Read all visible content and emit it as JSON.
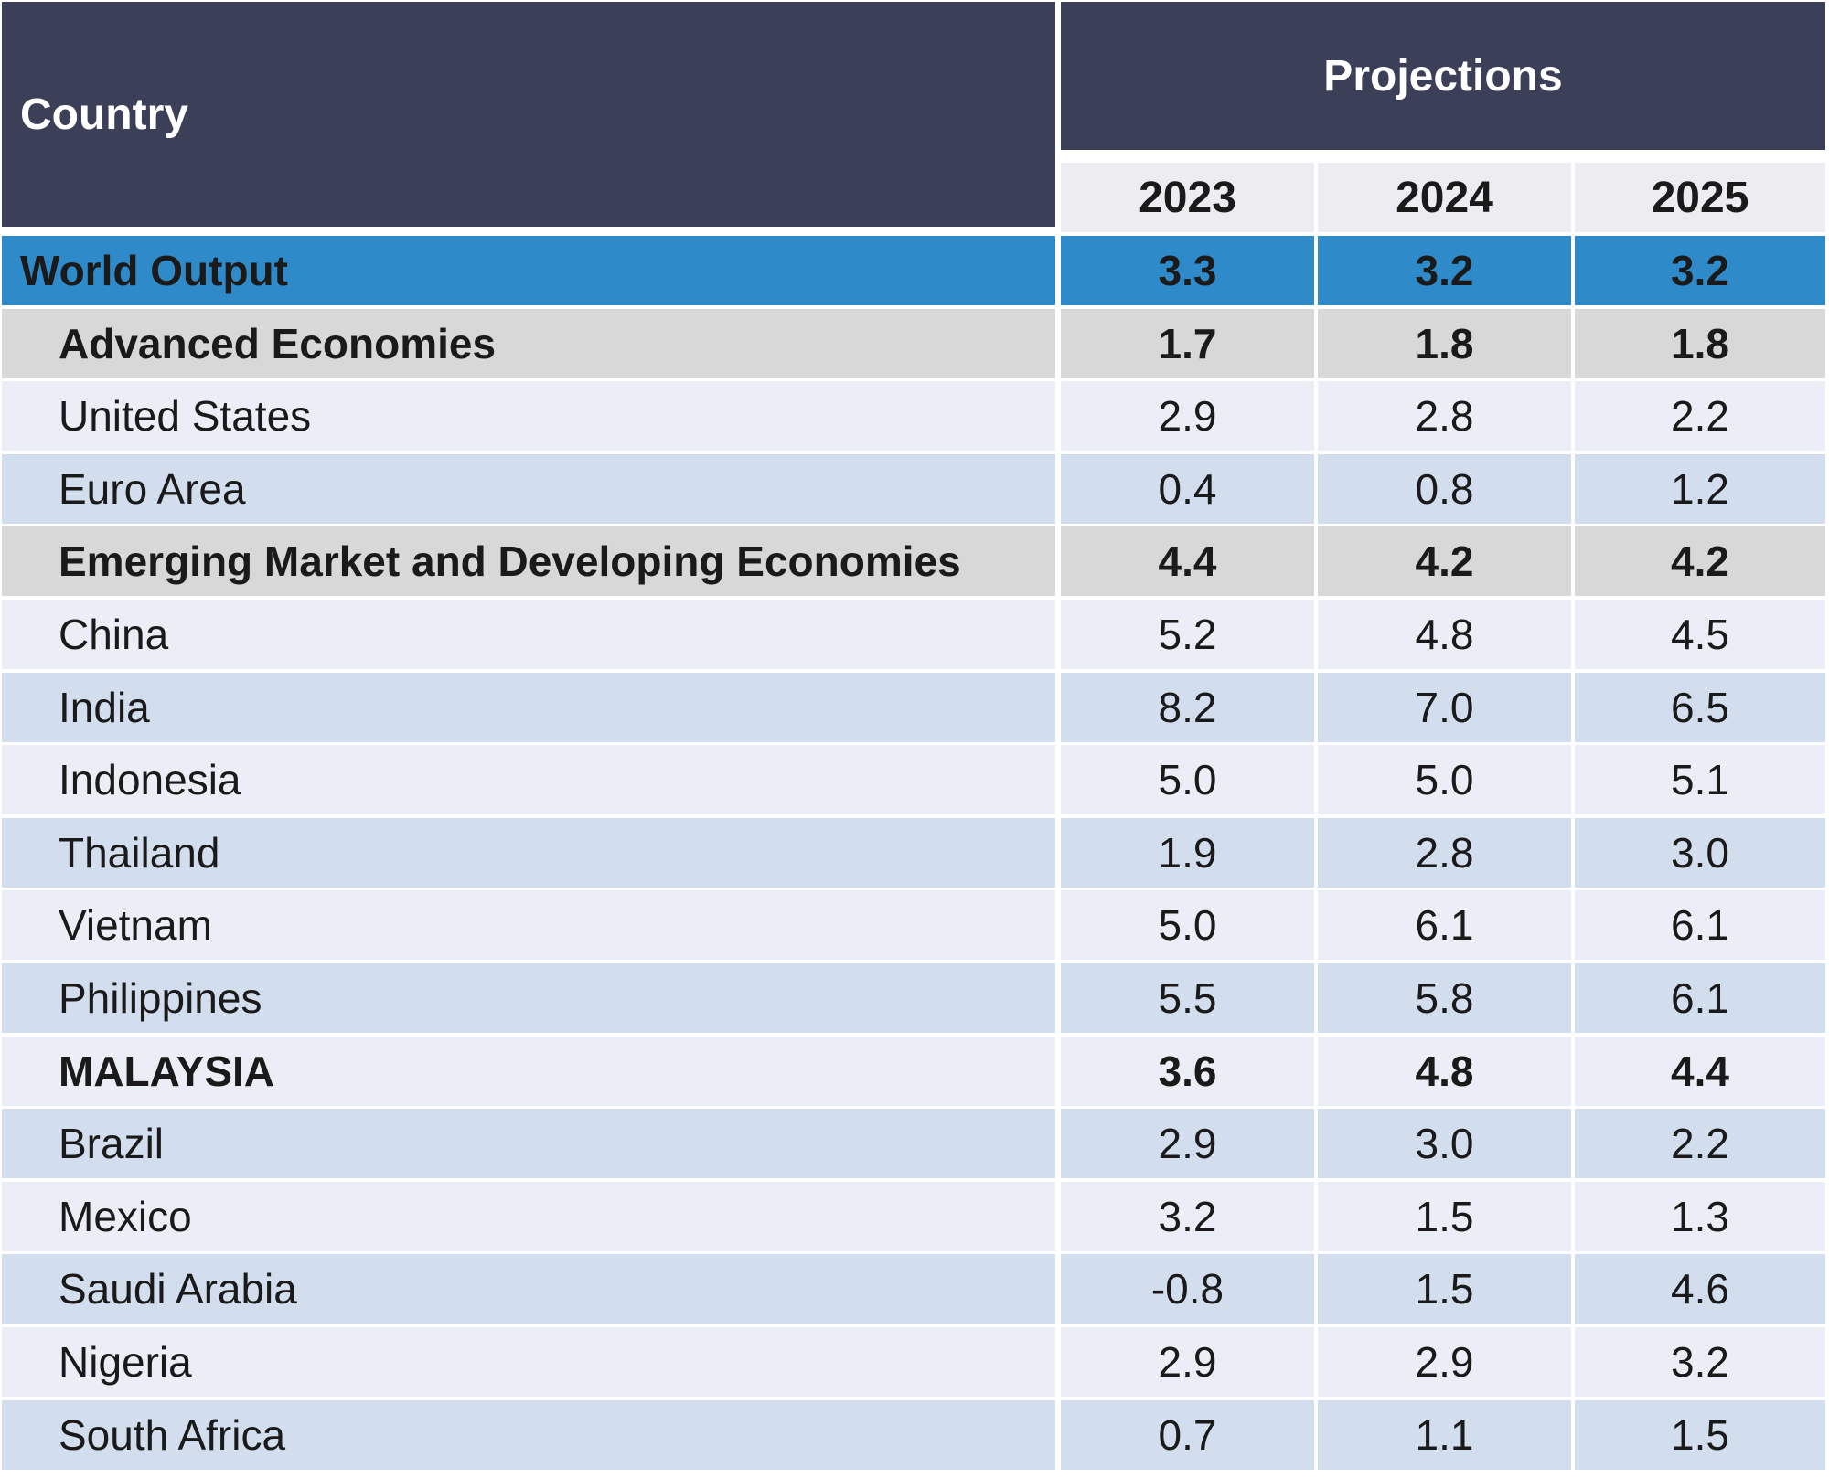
{
  "header": {
    "country_label": "Country",
    "projections_label": "Projections",
    "years": [
      "2023",
      "2024",
      "2025"
    ]
  },
  "colors": {
    "header_bg": "#3b3f58",
    "world_row_bg": "#2e8ac8",
    "group_row_bg": "#d8d8d8",
    "row_light": "#ebeef6",
    "row_dark": "#d2ddee"
  },
  "rows": [
    {
      "name": "World Output",
      "values": [
        "3.3",
        "3.2",
        "3.2"
      ],
      "style": "world"
    },
    {
      "name": "Advanced Economies",
      "values": [
        "1.7",
        "1.8",
        "1.8"
      ],
      "style": "group"
    },
    {
      "name": "United States",
      "values": [
        "2.9",
        "2.8",
        "2.2"
      ],
      "style": "light"
    },
    {
      "name": "Euro Area",
      "values": [
        "0.4",
        "0.8",
        "1.2"
      ],
      "style": "dark"
    },
    {
      "name": "Emerging Market and Developing Economies",
      "values": [
        "4.4",
        "4.2",
        "4.2"
      ],
      "style": "group"
    },
    {
      "name": "China",
      "values": [
        "5.2",
        "4.8",
        "4.5"
      ],
      "style": "light"
    },
    {
      "name": "India",
      "values": [
        "8.2",
        "7.0",
        "6.5"
      ],
      "style": "dark"
    },
    {
      "name": "Indonesia",
      "values": [
        "5.0",
        "5.0",
        "5.1"
      ],
      "style": "light"
    },
    {
      "name": "Thailand",
      "values": [
        "1.9",
        "2.8",
        "3.0"
      ],
      "style": "dark"
    },
    {
      "name": "Vietnam",
      "values": [
        "5.0",
        "6.1",
        "6.1"
      ],
      "style": "light"
    },
    {
      "name": "Philippines",
      "values": [
        "5.5",
        "5.8",
        "6.1"
      ],
      "style": "dark"
    },
    {
      "name": "MALAYSIA",
      "values": [
        "3.6",
        "4.8",
        "4.4"
      ],
      "style": "light bold"
    },
    {
      "name": "Brazil",
      "values": [
        "2.9",
        "3.0",
        "2.2"
      ],
      "style": "dark"
    },
    {
      "name": "Mexico",
      "values": [
        "3.2",
        "1.5",
        "1.3"
      ],
      "style": "light"
    },
    {
      "name": "Saudi Arabia",
      "values": [
        "-0.8",
        "1.5",
        "4.6"
      ],
      "style": "dark"
    },
    {
      "name": "Nigeria",
      "values": [
        "2.9",
        "2.9",
        "3.2"
      ],
      "style": "light"
    },
    {
      "name": "South Africa",
      "values": [
        "0.7",
        "1.1",
        "1.5"
      ],
      "style": "dark"
    }
  ]
}
